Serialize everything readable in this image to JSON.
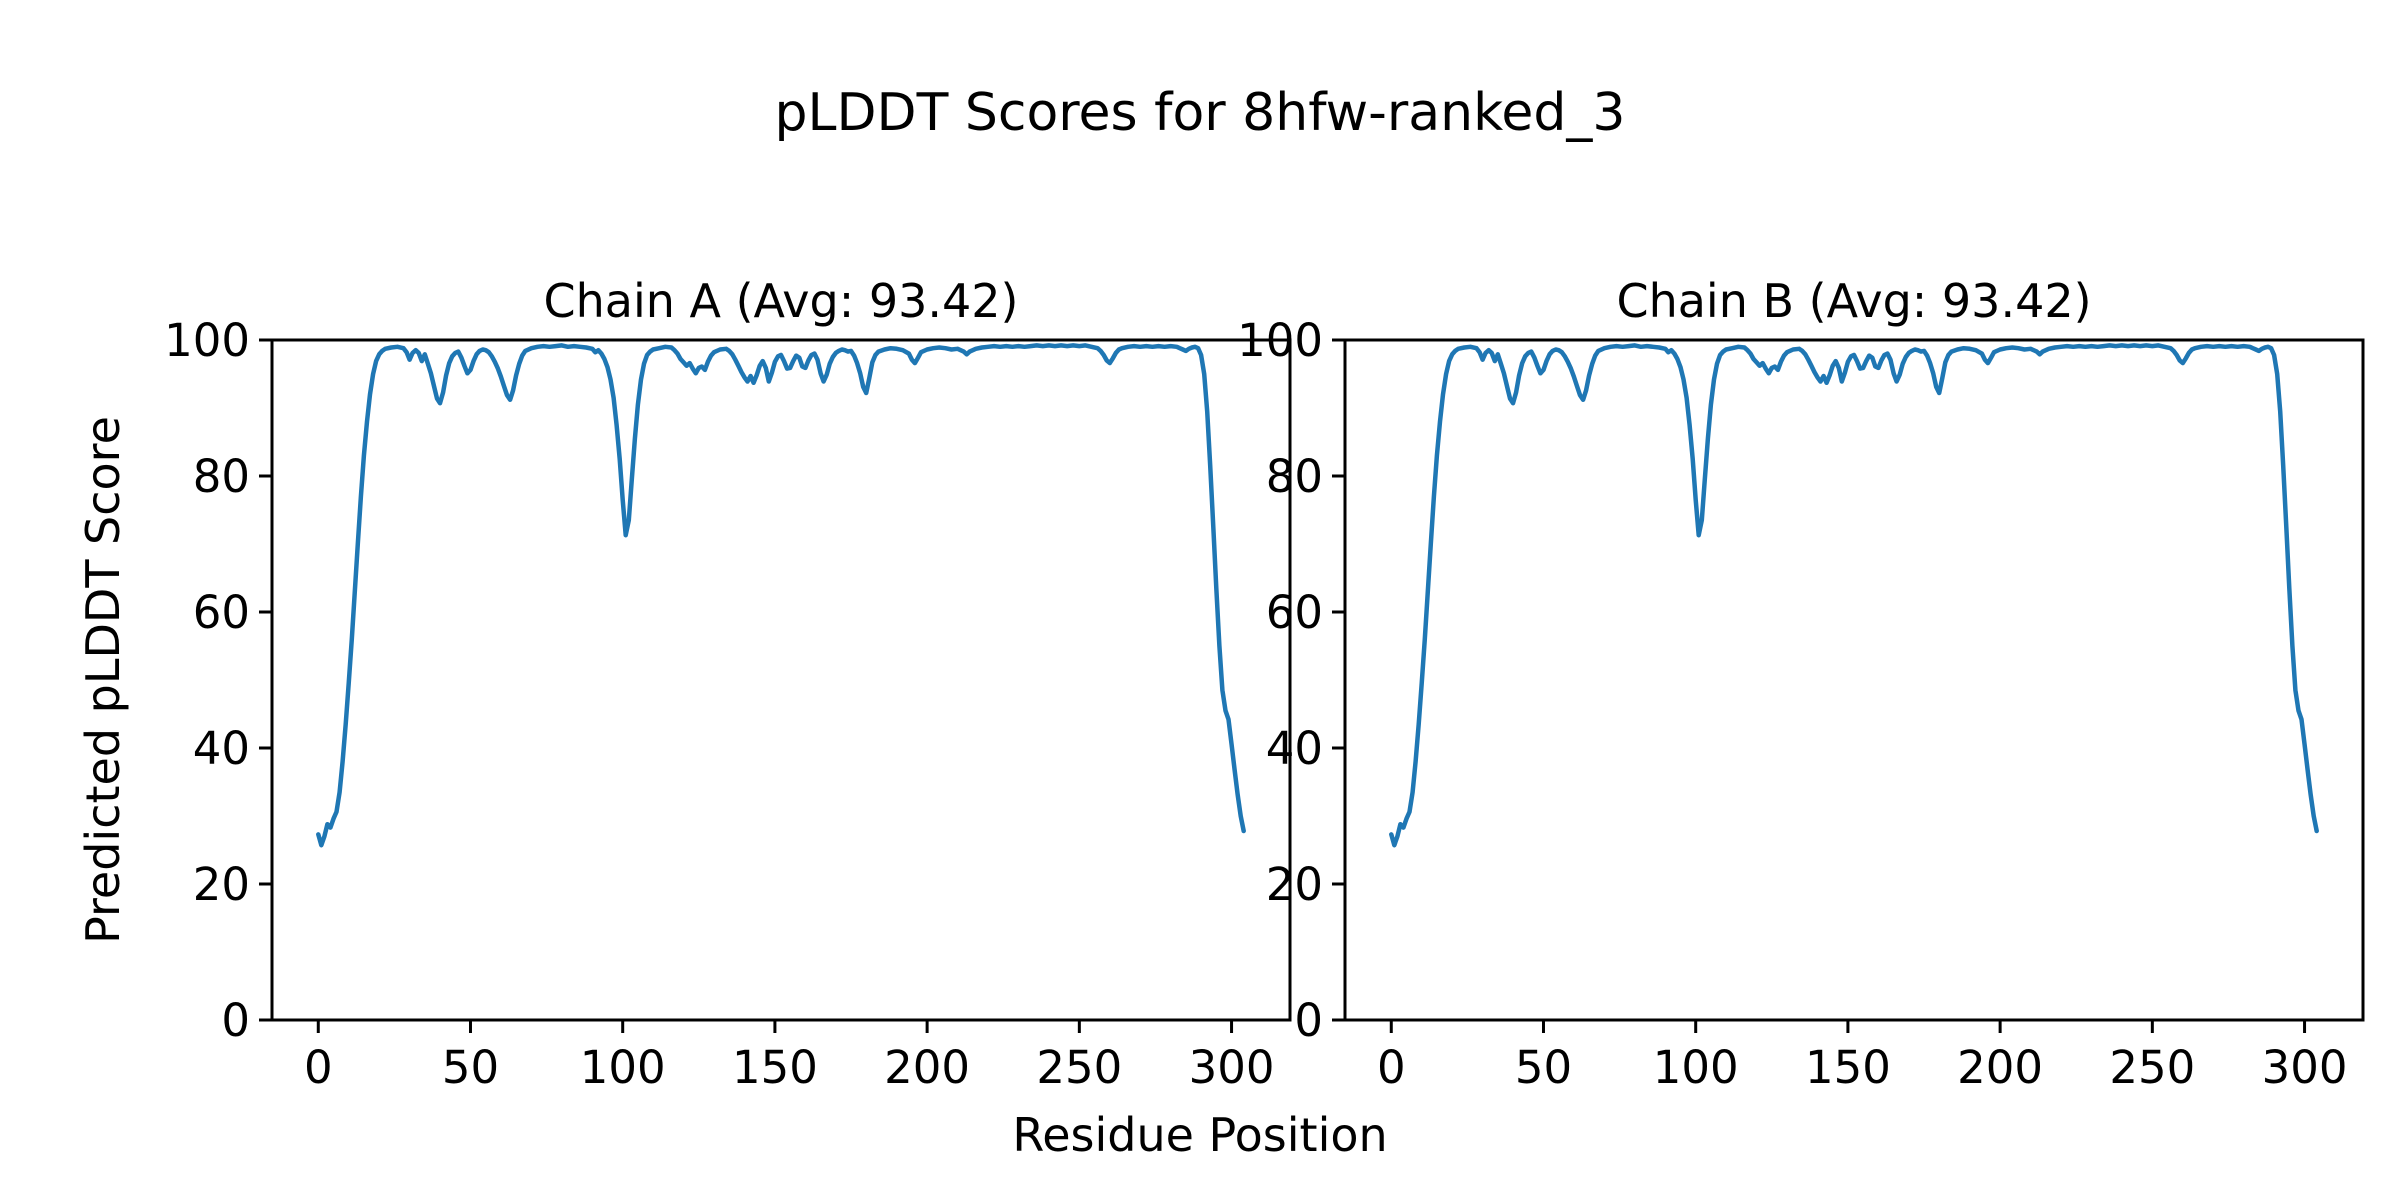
{
  "figure": {
    "suptitle": "pLDDT Scores for 8hfw-ranked_3",
    "background_color": "#ffffff",
    "text_color": "#000000"
  },
  "chart_data": {
    "type": "line",
    "suptitle": "pLDDT Scores for 8hfw-ranked_3",
    "xlabel": "Residue Position",
    "ylabel": "Predicted pLDDT Score",
    "line_color": "#1f77b4",
    "grid": false,
    "legend": "none",
    "xlim": [
      -15.2,
      319.2
    ],
    "ylim": [
      0,
      100
    ],
    "xticks": [
      0,
      50,
      100,
      150,
      200,
      250,
      300
    ],
    "yticks": [
      0,
      20,
      40,
      60,
      80,
      100
    ],
    "subplots": [
      {
        "title": "Chain A (Avg: 93.42)",
        "chain": "A",
        "avg": 93.42,
        "series_key": "plddt"
      },
      {
        "title": "Chain B (Avg: 93.42)",
        "chain": "B",
        "avg": 93.42,
        "series_key": "plddt"
      }
    ],
    "series": {
      "plddt": {
        "name": "pLDDT",
        "points": [
          [
            0,
            27.3
          ],
          [
            1,
            25.7
          ],
          [
            2,
            27.0
          ],
          [
            3,
            28.8
          ],
          [
            4,
            28.3
          ],
          [
            5,
            29.6
          ],
          [
            6,
            30.6
          ],
          [
            7,
            33.5
          ],
          [
            8,
            38
          ],
          [
            9,
            43.5
          ],
          [
            10,
            49.5
          ],
          [
            11,
            56
          ],
          [
            12,
            63
          ],
          [
            13,
            70
          ],
          [
            14,
            77
          ],
          [
            15,
            83
          ],
          [
            16,
            88
          ],
          [
            17,
            92
          ],
          [
            18,
            95
          ],
          [
            19,
            96.9
          ],
          [
            20,
            97.9
          ],
          [
            21,
            98.4
          ],
          [
            22,
            98.7
          ],
          [
            24,
            98.9
          ],
          [
            26,
            99.0
          ],
          [
            28,
            98.8
          ],
          [
            29,
            98.2
          ],
          [
            30,
            97.1
          ],
          [
            31,
            98.1
          ],
          [
            32,
            98.5
          ],
          [
            33,
            98.1
          ],
          [
            34,
            96.9
          ],
          [
            35,
            97.9
          ],
          [
            36,
            96.5
          ],
          [
            37,
            95.1
          ],
          [
            38,
            93.2
          ],
          [
            39,
            91.4
          ],
          [
            40,
            90.7
          ],
          [
            41,
            92.3
          ],
          [
            42,
            94.8
          ],
          [
            43,
            96.6
          ],
          [
            44,
            97.6
          ],
          [
            45,
            98.1
          ],
          [
            46,
            98.3
          ],
          [
            47,
            97.4
          ],
          [
            48,
            96.2
          ],
          [
            49,
            95.1
          ],
          [
            50,
            95.6
          ],
          [
            51,
            96.9
          ],
          [
            52,
            97.9
          ],
          [
            53,
            98.4
          ],
          [
            54,
            98.6
          ],
          [
            55,
            98.5
          ],
          [
            56,
            98.2
          ],
          [
            57,
            97.6
          ],
          [
            58,
            96.8
          ],
          [
            59,
            95.8
          ],
          [
            60,
            94.6
          ],
          [
            61,
            93.2
          ],
          [
            62,
            91.9
          ],
          [
            63,
            91.2
          ],
          [
            64,
            92.6
          ],
          [
            65,
            94.8
          ],
          [
            66,
            96.5
          ],
          [
            67,
            97.7
          ],
          [
            68,
            98.4
          ],
          [
            70,
            98.8
          ],
          [
            72,
            99.0
          ],
          [
            74,
            99.1
          ],
          [
            76,
            99.0
          ],
          [
            78,
            99.1
          ],
          [
            80,
            99.2
          ],
          [
            82,
            99.0
          ],
          [
            84,
            99.1
          ],
          [
            86,
            99.0
          ],
          [
            88,
            98.9
          ],
          [
            90,
            98.7
          ],
          [
            91,
            98.2
          ],
          [
            92,
            98.5
          ],
          [
            93,
            98.0
          ],
          [
            94,
            97.2
          ],
          [
            95,
            96.0
          ],
          [
            96,
            94.2
          ],
          [
            97,
            91.5
          ],
          [
            98,
            87.5
          ],
          [
            99,
            82.5
          ],
          [
            100,
            76.5
          ],
          [
            101,
            71.3
          ],
          [
            102,
            73.5
          ],
          [
            103,
            79.5
          ],
          [
            104,
            85.5
          ],
          [
            105,
            90.5
          ],
          [
            106,
            94.2
          ],
          [
            107,
            96.5
          ],
          [
            108,
            97.8
          ],
          [
            109,
            98.3
          ],
          [
            110,
            98.6
          ],
          [
            112,
            98.8
          ],
          [
            114,
            99.0
          ],
          [
            116,
            98.9
          ],
          [
            117,
            98.5
          ],
          [
            118,
            98.0
          ],
          [
            119,
            97.2
          ],
          [
            120,
            96.7
          ],
          [
            121,
            96.2
          ],
          [
            122,
            96.6
          ],
          [
            123,
            95.8
          ],
          [
            124,
            95.1
          ],
          [
            125,
            95.9
          ],
          [
            126,
            96.1
          ],
          [
            127,
            95.6
          ],
          [
            128,
            96.8
          ],
          [
            129,
            97.7
          ],
          [
            130,
            98.2
          ],
          [
            132,
            98.6
          ],
          [
            134,
            98.7
          ],
          [
            135,
            98.4
          ],
          [
            136,
            97.9
          ],
          [
            137,
            97.1
          ],
          [
            138,
            96.2
          ],
          [
            139,
            95.3
          ],
          [
            140,
            94.5
          ],
          [
            141,
            93.9
          ],
          [
            142,
            94.7
          ],
          [
            143,
            93.7
          ],
          [
            144,
            94.8
          ],
          [
            145,
            96.2
          ],
          [
            146,
            96.9
          ],
          [
            147,
            95.9
          ],
          [
            148,
            93.9
          ],
          [
            149,
            95.2
          ],
          [
            150,
            96.8
          ],
          [
            151,
            97.6
          ],
          [
            152,
            97.8
          ],
          [
            153,
            96.9
          ],
          [
            154,
            95.8
          ],
          [
            155,
            95.9
          ],
          [
            156,
            96.9
          ],
          [
            157,
            97.7
          ],
          [
            158,
            97.4
          ],
          [
            159,
            96.1
          ],
          [
            160,
            95.9
          ],
          [
            161,
            97.0
          ],
          [
            162,
            97.8
          ],
          [
            163,
            98.0
          ],
          [
            164,
            97.1
          ],
          [
            165,
            95.1
          ],
          [
            166,
            93.9
          ],
          [
            167,
            94.9
          ],
          [
            168,
            96.5
          ],
          [
            169,
            97.5
          ],
          [
            170,
            98.1
          ],
          [
            171,
            98.4
          ],
          [
            172,
            98.6
          ],
          [
            173,
            98.5
          ],
          [
            174,
            98.3
          ],
          [
            175,
            98.4
          ],
          [
            176,
            97.7
          ],
          [
            177,
            96.6
          ],
          [
            178,
            95.1
          ],
          [
            179,
            93.1
          ],
          [
            180,
            92.2
          ],
          [
            181,
            94.4
          ],
          [
            182,
            96.7
          ],
          [
            183,
            97.8
          ],
          [
            184,
            98.3
          ],
          [
            186,
            98.6
          ],
          [
            188,
            98.8
          ],
          [
            190,
            98.7
          ],
          [
            192,
            98.5
          ],
          [
            194,
            98.0
          ],
          [
            195,
            97.1
          ],
          [
            196,
            96.6
          ],
          [
            197,
            97.4
          ],
          [
            198,
            98.2
          ],
          [
            200,
            98.6
          ],
          [
            202,
            98.8
          ],
          [
            204,
            98.9
          ],
          [
            206,
            98.8
          ],
          [
            208,
            98.6
          ],
          [
            210,
            98.7
          ],
          [
            212,
            98.3
          ],
          [
            213,
            97.9
          ],
          [
            214,
            98.3
          ],
          [
            216,
            98.7
          ],
          [
            218,
            98.9
          ],
          [
            220,
            99.0
          ],
          [
            222,
            99.1
          ],
          [
            224,
            99.0
          ],
          [
            226,
            99.1
          ],
          [
            228,
            99.0
          ],
          [
            230,
            99.1
          ],
          [
            232,
            99.0
          ],
          [
            234,
            99.1
          ],
          [
            236,
            99.2
          ],
          [
            238,
            99.1
          ],
          [
            240,
            99.2
          ],
          [
            242,
            99.1
          ],
          [
            244,
            99.2
          ],
          [
            246,
            99.1
          ],
          [
            248,
            99.2
          ],
          [
            250,
            99.1
          ],
          [
            252,
            99.2
          ],
          [
            254,
            99.0
          ],
          [
            256,
            98.8
          ],
          [
            257,
            98.4
          ],
          [
            258,
            97.8
          ],
          [
            259,
            97.0
          ],
          [
            260,
            96.6
          ],
          [
            261,
            97.3
          ],
          [
            262,
            98.1
          ],
          [
            263,
            98.6
          ],
          [
            264,
            98.8
          ],
          [
            266,
            99.0
          ],
          [
            268,
            99.1
          ],
          [
            270,
            99.0
          ],
          [
            272,
            99.1
          ],
          [
            274,
            99.0
          ],
          [
            276,
            99.1
          ],
          [
            278,
            99.0
          ],
          [
            280,
            99.1
          ],
          [
            282,
            99.0
          ],
          [
            283,
            98.8
          ],
          [
            284,
            98.6
          ],
          [
            285,
            98.4
          ],
          [
            286,
            98.7
          ],
          [
            287,
            98.9
          ],
          [
            288,
            99.0
          ],
          [
            289,
            98.8
          ],
          [
            290,
            97.8
          ],
          [
            291,
            95.0
          ],
          [
            292,
            89.5
          ],
          [
            293,
            81.5
          ],
          [
            294,
            72.5
          ],
          [
            295,
            63.5
          ],
          [
            296,
            55.0
          ],
          [
            297,
            48.5
          ],
          [
            298,
            45.5
          ],
          [
            299,
            44.2
          ],
          [
            300,
            40.5
          ],
          [
            301,
            36.8
          ],
          [
            302,
            33.2
          ],
          [
            303,
            30.0
          ],
          [
            304,
            27.8
          ]
        ]
      }
    }
  }
}
